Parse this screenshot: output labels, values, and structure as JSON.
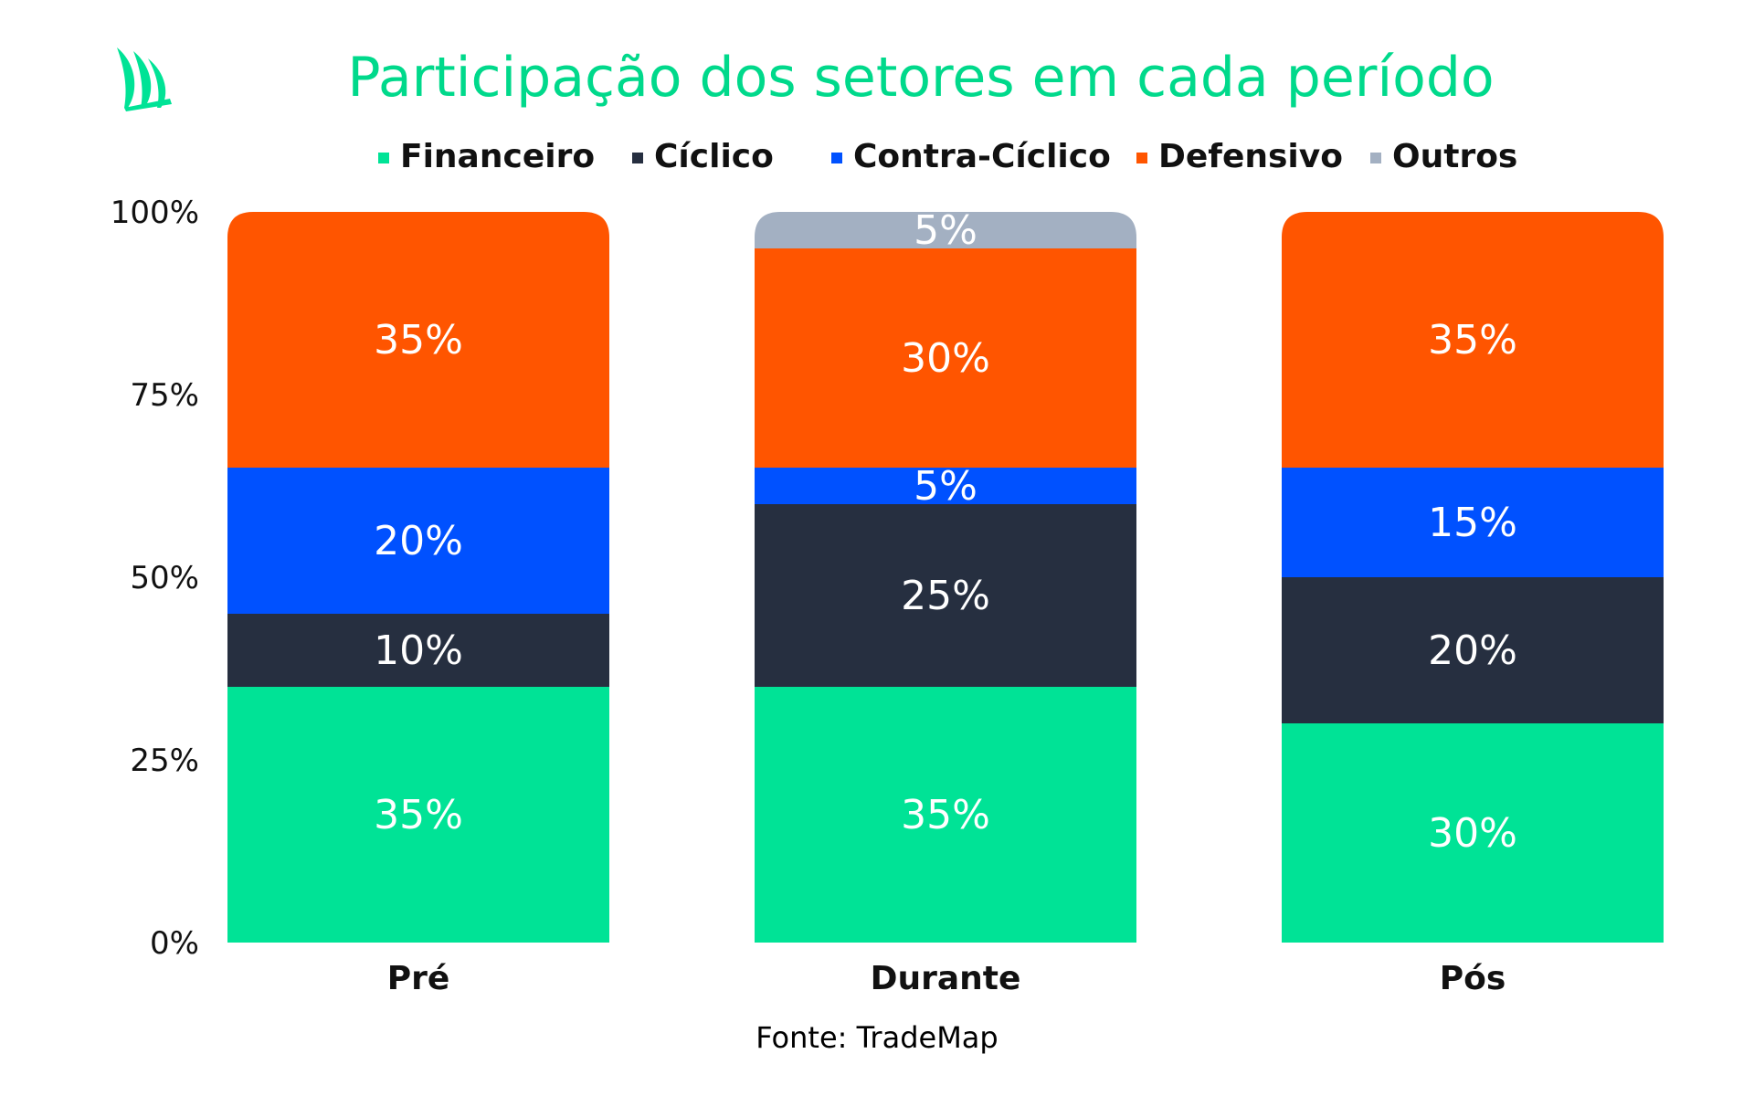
{
  "chart_data": {
    "type": "bar",
    "stacked": true,
    "title": "Participação dos setores em cada período",
    "categories": [
      "Pré",
      "Durante",
      "Pós"
    ],
    "series": [
      {
        "name": "Financeiro",
        "values": [
          35,
          35,
          30
        ],
        "labels": [
          "35%",
          "35%",
          "30%"
        ]
      },
      {
        "name": "Cíclico",
        "values": [
          10,
          25,
          20
        ],
        "labels": [
          "10%",
          "25%",
          "20%"
        ]
      },
      {
        "name": "Contra-Cíclico",
        "values": [
          20,
          5,
          15
        ],
        "labels": [
          "20%",
          "5%",
          "15%"
        ]
      },
      {
        "name": "Defensivo",
        "values": [
          35,
          30,
          35
        ],
        "labels": [
          "35%",
          "30%",
          "35%"
        ]
      },
      {
        "name": "Outros",
        "values": [
          0,
          5,
          0
        ],
        "labels": [
          "",
          "5%",
          ""
        ]
      }
    ],
    "ylim": [
      0,
      100
    ],
    "yticks": [
      0,
      25,
      50,
      75,
      100
    ],
    "ytick_labels": [
      "0%",
      "25%",
      "50%",
      "75%",
      "100%"
    ],
    "legend_position": "top",
    "grid": false,
    "source": "Fonte: TradeMap"
  },
  "colors": {
    "title": "#00D98B",
    "text": "#111111",
    "segment_label": "#ffffff",
    "series": [
      "#00E396",
      "#262F40",
      "#0051FF",
      "#FF5500",
      "#A3B0C2"
    ],
    "logo": "#00E396"
  },
  "logo_icon": "leaf-icon"
}
